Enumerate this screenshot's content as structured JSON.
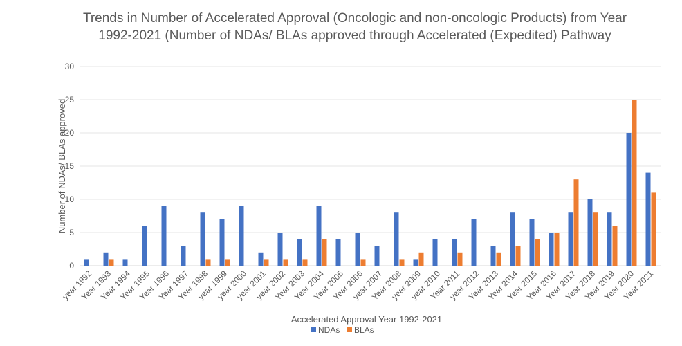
{
  "chart_data": {
    "type": "bar",
    "title": "Trends in Number of Accelerated Approval (Oncologic and non-oncologic Products) from Year 1992-2021 (Number of NDAs/ BLAs approved through Accelerated (Expedited) Pathway",
    "xlabel": "Accelerated Approval Year 1992-2021",
    "ylabel": "Number of NDAs/ BLAs approved",
    "ylim": [
      0,
      30
    ],
    "yticks": [
      0,
      5,
      10,
      15,
      20,
      25,
      30
    ],
    "grid": true,
    "legend_position": "bottom",
    "categories": [
      "year 1992",
      "Year 1993",
      "Year 1994",
      "Year 1995",
      "Year 1996",
      "Year 1997",
      "Year 1998",
      "year 1999",
      "year 2000",
      "year 2001",
      "year 2002",
      "Year 2003",
      "Year 2004",
      "Year 2005",
      "Year 2006",
      "year 2007",
      "Year 2008",
      "year 2009",
      "year 2010",
      "Year 2011",
      "year 2012",
      "Year 2013",
      "Year 2014",
      "Year 2015",
      "Year 2016",
      "Year 2017",
      "Year 2018",
      "Year 2019",
      "Year 2020",
      "Year 2021"
    ],
    "series": [
      {
        "name": "NDAs",
        "color": "#4472C4",
        "values": [
          1,
          2,
          1,
          6,
          9,
          3,
          8,
          7,
          9,
          2,
          5,
          4,
          9,
          4,
          5,
          3,
          8,
          1,
          4,
          4,
          7,
          3,
          8,
          7,
          5,
          8,
          10,
          8,
          20,
          14
        ]
      },
      {
        "name": "BLAs",
        "color": "#ED7D31",
        "values": [
          0,
          1,
          0,
          0,
          0,
          0,
          1,
          1,
          0,
          1,
          1,
          1,
          4,
          0,
          1,
          0,
          1,
          2,
          0,
          2,
          0,
          2,
          3,
          4,
          5,
          13,
          8,
          6,
          25,
          11
        ]
      }
    ]
  }
}
